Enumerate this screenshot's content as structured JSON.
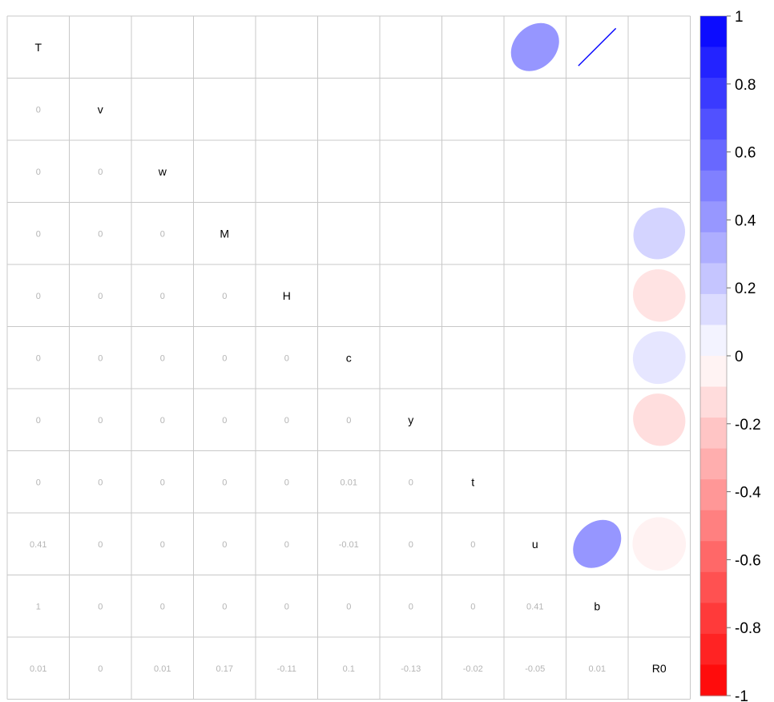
{
  "chart_data": {
    "type": "heatmap",
    "variables": [
      "T",
      "v",
      "w",
      "M",
      "H",
      "c",
      "y",
      "t",
      "u",
      "b",
      "R0"
    ],
    "lower_triangle_numbers": [
      [],
      [
        "0"
      ],
      [
        "0",
        "0"
      ],
      [
        "0",
        "0",
        "0"
      ],
      [
        "0",
        "0",
        "0",
        "0"
      ],
      [
        "0",
        "0",
        "0",
        "0",
        "0"
      ],
      [
        "0",
        "0",
        "0",
        "0",
        "0",
        "0"
      ],
      [
        "0",
        "0",
        "0",
        "0",
        "0",
        "0.01",
        "0"
      ],
      [
        "0.41",
        "0",
        "0",
        "0",
        "0",
        "-0.01",
        "0",
        "0"
      ],
      [
        "1",
        "0",
        "0",
        "0",
        "0",
        "0",
        "0",
        "0",
        "0.41"
      ],
      [
        "0.01",
        "0",
        "0.01",
        "0.17",
        "-0.11",
        "0.1",
        "-0.13",
        "-0.02",
        "-0.05",
        "0.01"
      ]
    ],
    "upper_triangle_ellipses": [
      {
        "row": 0,
        "col": 8,
        "value": 0.41
      },
      {
        "row": 0,
        "col": 9,
        "value": 1
      },
      {
        "row": 3,
        "col": 10,
        "value": 0.17
      },
      {
        "row": 4,
        "col": 10,
        "value": -0.11
      },
      {
        "row": 5,
        "col": 10,
        "value": 0.1
      },
      {
        "row": 6,
        "col": 10,
        "value": -0.13
      },
      {
        "row": 8,
        "col": 9,
        "value": 0.41
      },
      {
        "row": 8,
        "col": 10,
        "value": -0.05
      }
    ],
    "color_scale": {
      "min": -1,
      "max": 1,
      "negative_color": "#ff0000",
      "zero_color": "#ffffff",
      "positive_color": "#0000ff",
      "ticks": [
        "1",
        "0.8",
        "0.6",
        "0.4",
        "0.2",
        "0",
        "-0.2",
        "-0.4",
        "-0.6",
        "-0.8",
        "-1"
      ]
    },
    "colors": {
      "grid": "#c8c8c8",
      "number_text": "#b4b4b4",
      "label_text": "#000000"
    }
  }
}
